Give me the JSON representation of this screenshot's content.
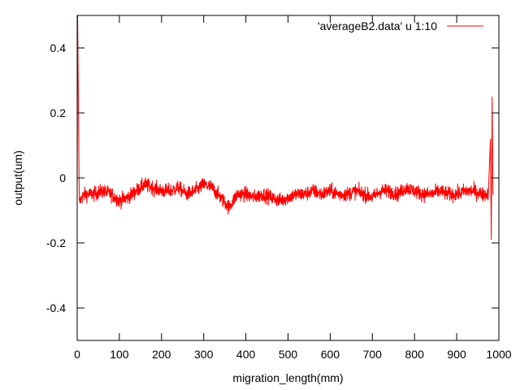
{
  "chart_data": {
    "type": "line",
    "title": "",
    "xlabel": "migration_length(mm)",
    "ylabel": "output(um)",
    "xlim": [
      0,
      1000
    ],
    "ylim": [
      -0.5,
      0.5
    ],
    "x_ticks": [
      0,
      100,
      200,
      300,
      400,
      500,
      600,
      700,
      800,
      900,
      1000
    ],
    "x_tick_labels": [
      "0",
      "100",
      "200",
      "300",
      "400",
      "500",
      "600",
      "700",
      "800",
      "900",
      "1000"
    ],
    "y_ticks": [
      -0.4,
      -0.2,
      0,
      0.2,
      0.4
    ],
    "y_tick_labels": [
      "-0.4",
      "-0.2",
      "0",
      "0.2",
      "0.4"
    ],
    "grid": false,
    "legend_position": "top-right",
    "series": [
      {
        "name": "'averageB2.data' u 1:10",
        "color": "#ff0000",
        "x": [
          0,
          1,
          5,
          10,
          20,
          40,
          60,
          80,
          100,
          120,
          140,
          160,
          180,
          200,
          220,
          240,
          260,
          280,
          300,
          320,
          340,
          360,
          370,
          380,
          400,
          420,
          440,
          460,
          480,
          500,
          520,
          540,
          560,
          580,
          600,
          620,
          640,
          660,
          680,
          700,
          720,
          740,
          760,
          780,
          800,
          820,
          840,
          860,
          880,
          900,
          920,
          940,
          960,
          975,
          980,
          982,
          984,
          986,
          988
        ],
        "y": [
          -0.05,
          0.5,
          -0.08,
          -0.06,
          -0.05,
          -0.05,
          -0.04,
          -0.05,
          -0.07,
          -0.06,
          -0.04,
          -0.02,
          -0.03,
          -0.04,
          -0.04,
          -0.03,
          -0.05,
          -0.04,
          -0.02,
          -0.03,
          -0.06,
          -0.09,
          -0.07,
          -0.05,
          -0.05,
          -0.06,
          -0.05,
          -0.06,
          -0.07,
          -0.06,
          -0.05,
          -0.05,
          -0.04,
          -0.05,
          -0.04,
          -0.05,
          -0.05,
          -0.04,
          -0.05,
          -0.06,
          -0.04,
          -0.04,
          -0.05,
          -0.03,
          -0.04,
          -0.05,
          -0.05,
          -0.04,
          -0.05,
          -0.05,
          -0.04,
          -0.04,
          -0.05,
          -0.05,
          0.12,
          -0.19,
          0.25,
          -0.05,
          -0.05
        ]
      }
    ]
  }
}
